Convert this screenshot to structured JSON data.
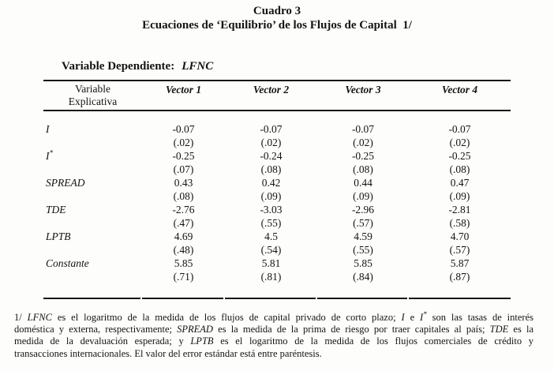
{
  "title": {
    "line1": "Cuadro 3",
    "line2": "Ecuaciones de ‘Equilibrio’ de los Flujos de Capital  1/"
  },
  "dependent_variable": {
    "label": "Variable Dependiente:",
    "value": "LFNC"
  },
  "table": {
    "header": {
      "col0_line1": "Variable",
      "col0_line2": "Explicativa",
      "columns": [
        "Vector 1",
        "Vector 2",
        "Vector 3",
        "Vector 4"
      ]
    },
    "rows": [
      {
        "variable": "I",
        "coefs": [
          "-0.07",
          "-0.07",
          "-0.07",
          "-0.07"
        ],
        "errors": [
          "(.02)",
          "(.02)",
          "(.02)",
          "(.02)"
        ]
      },
      {
        "variable": "I",
        "sup": "*",
        "coefs": [
          "-0.25",
          "-0.24",
          "-0.25",
          "-0.25"
        ],
        "errors": [
          "(.07)",
          "(.08)",
          "(.08)",
          "(.08)"
        ]
      },
      {
        "variable": "SPREAD",
        "coefs": [
          "0.43",
          "0.42",
          "0.44",
          "0.47"
        ],
        "errors": [
          "(.08)",
          "(.09)",
          "(.09)",
          "(.09)"
        ]
      },
      {
        "variable": "TDE",
        "coefs": [
          "-2.76",
          "-3.03",
          "-2.96",
          "-2.81"
        ],
        "errors": [
          "(.47)",
          "(.55)",
          "(.57)",
          "(.58)"
        ]
      },
      {
        "variable": "LPTB",
        "coefs": [
          "4.69",
          "4.5",
          "4.59",
          "4.70"
        ],
        "errors": [
          "(.48)",
          "(.54)",
          "(.55)",
          "(.57)"
        ]
      },
      {
        "variable": "Constante",
        "coefs": [
          "5.85",
          "5.81",
          "5.85",
          "5.87"
        ],
        "errors": [
          "(.71)",
          "(.81)",
          "(.84)",
          "(.87)"
        ]
      }
    ]
  },
  "footnote": {
    "line1": {
      "a": "1/ ",
      "b": "LFNC",
      "c": " es el logaritmo de la medida de los flujos de capital privado de corto plazo; ",
      "d": "I",
      "e": " e ",
      "f": "I",
      "g": "*",
      "h": " son las tasas de interés"
    },
    "line2": {
      "a": "doméstica y externa, respectivamente; ",
      "b": "SPREAD",
      "c": " es la medida de la prima de riesgo por traer capitales al país; ",
      "d": "TDE",
      "e": " es la"
    },
    "line3": {
      "a": "medida de la devaluación esperada; y ",
      "b": "LPTB",
      "c": " es el logaritmo de la medida de los flujos comerciales de crédito y"
    },
    "line4": {
      "a": "transacciones internacionales. El valor del error estándar está entre paréntesis."
    }
  },
  "colors": {
    "background": "#fdfdfb",
    "text": "#141414",
    "rule": "#161616"
  }
}
